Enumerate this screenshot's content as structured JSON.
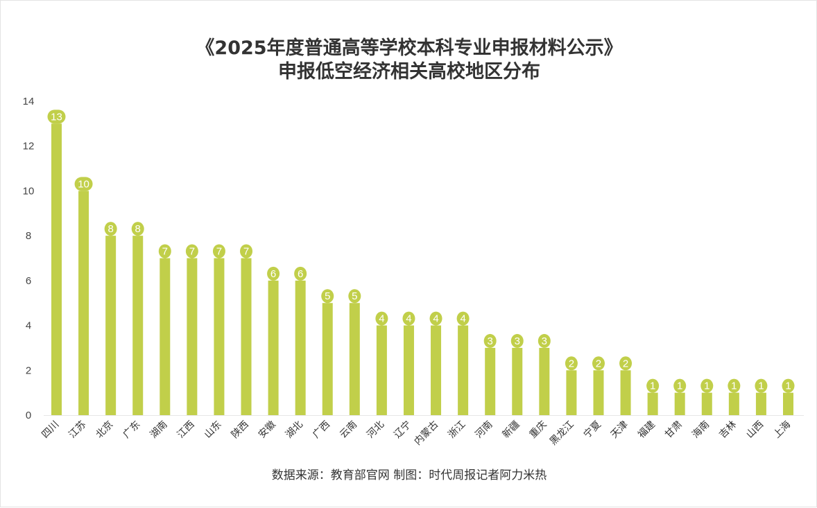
{
  "title": {
    "line1": "《2025年度普通高等学校本科专业申报材料公示》",
    "line2": "申报低空经济相关高校地区分布"
  },
  "source_text": "数据来源：教育部官网 制图：时代周报记者阿力米热",
  "colors": {
    "bar": "#c1cf4a",
    "axis_line": "#e6e6e6",
    "text": "#333333"
  },
  "chart_data": {
    "type": "bar",
    "categories": [
      "四川",
      "江苏",
      "北京",
      "广东",
      "湖南",
      "江西",
      "山东",
      "陕西",
      "安徽",
      "湖北",
      "广西",
      "云南",
      "河北",
      "辽宁",
      "内蒙古",
      "浙江",
      "河南",
      "新疆",
      "重庆",
      "黑龙江",
      "宁夏",
      "天津",
      "福建",
      "甘肃",
      "海南",
      "吉林",
      "山西",
      "上海"
    ],
    "values": [
      13,
      10,
      8,
      8,
      7,
      7,
      7,
      7,
      6,
      6,
      5,
      5,
      4,
      4,
      4,
      4,
      3,
      3,
      3,
      2,
      2,
      2,
      1,
      1,
      1,
      1,
      1,
      1
    ],
    "yticks": [
      0,
      2,
      4,
      6,
      8,
      10,
      12,
      14
    ],
    "ylim": [
      0,
      14
    ],
    "grid": false,
    "legend": "none",
    "data_labels": true
  }
}
